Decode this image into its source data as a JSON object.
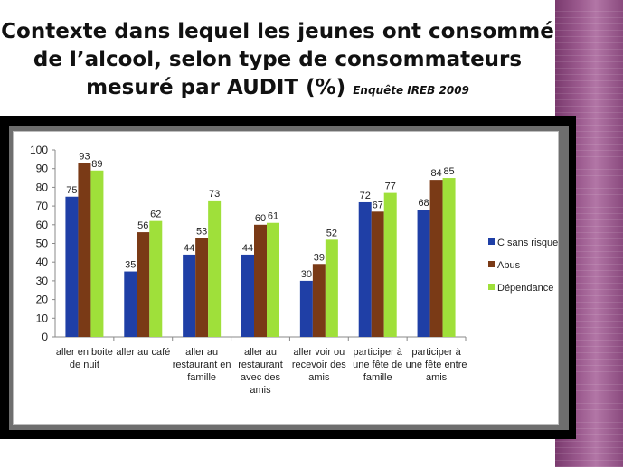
{
  "slide": {
    "title_line1": "Contexte dans lequel les jeunes ont consommé",
    "title_line2": "de l’alcool, selon type de consommateurs",
    "title_line3": "mesuré par AUDIT (%)",
    "subtitle": "Enquête IREB 2009"
  },
  "chart_data": {
    "type": "bar",
    "categories": [
      [
        "aller en boite",
        "de nuit"
      ],
      [
        "aller au café"
      ],
      [
        "aller au",
        "restaurant en",
        "famille"
      ],
      [
        "aller au",
        "restaurant",
        "avec des",
        "amis"
      ],
      [
        "aller voir ou",
        "recevoir des",
        "amis"
      ],
      [
        "participer à",
        "une fête de",
        "famille"
      ],
      [
        "participer à",
        "une fête entre",
        "amis"
      ]
    ],
    "series": [
      {
        "name": "C sans risque",
        "color": "#1f3fa6",
        "values": [
          75,
          35,
          44,
          44,
          30,
          72,
          68
        ]
      },
      {
        "name": "Abus",
        "color": "#7a3a16",
        "values": [
          93,
          56,
          53,
          60,
          39,
          67,
          84
        ]
      },
      {
        "name": "Dépendance",
        "color": "#9fe03a",
        "values": [
          89,
          62,
          73,
          61,
          52,
          77,
          85
        ]
      }
    ],
    "ylim": [
      0,
      100
    ],
    "yticks": [
      0,
      10,
      20,
      30,
      40,
      50,
      60,
      70,
      80,
      90,
      100
    ],
    "legend_position": "right",
    "grid": false
  }
}
